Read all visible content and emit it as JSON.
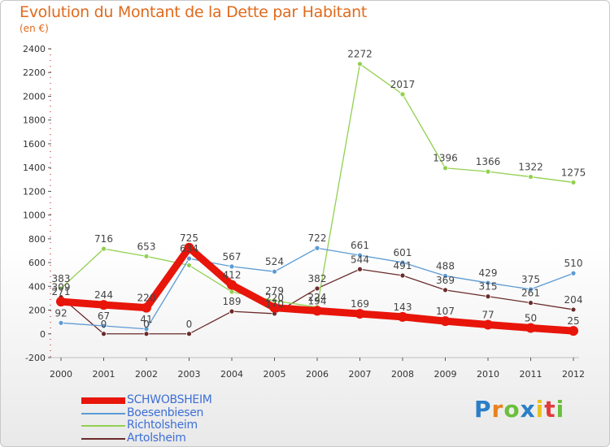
{
  "title": "Evolution du Montant de la Dette par Habitant",
  "subtitle": "(en €)",
  "logo": {
    "text": "Proxiti",
    "letter_colors": [
      "#2a7fc7",
      "#e8821e",
      "#6abf3c",
      "#2a7fc7",
      "#e8c21e",
      "#e23c3c",
      "#6abf3c"
    ]
  },
  "chart_data": {
    "type": "line",
    "x": [
      "2000",
      "2001",
      "2002",
      "2003",
      "2004",
      "2005",
      "2006",
      "2007",
      "2008",
      "2009",
      "2010",
      "2011",
      "2012"
    ],
    "ylim": [
      -200,
      2400
    ],
    "yticks": [
      "-200",
      "0",
      "200",
      "400",
      "600",
      "800",
      "1000",
      "1200",
      "1400",
      "1600",
      "1800",
      "2000",
      "2200",
      "2400"
    ],
    "grid": false,
    "legend_position": "bottom-left",
    "series": [
      {
        "name": "SCHWOBSHEIM",
        "color": "#e8150a",
        "values": [
          271,
          244,
          220,
          725,
          412,
          220,
          194,
          169,
          143,
          107,
          77,
          50,
          25
        ],
        "labels": [
          "271",
          "244",
          "220",
          "725",
          "412",
          "220",
          "194",
          "169",
          "143",
          "107",
          "77",
          "50",
          "25"
        ]
      },
      {
        "name": "Boesenbiesen",
        "color": "#5b9bd5",
        "values": [
          92,
          67,
          41,
          634,
          567,
          524,
          722,
          661,
          601,
          488,
          429,
          375,
          510
        ],
        "labels": [
          "92",
          "67",
          "41",
          "634",
          "567",
          "524",
          "722",
          "661",
          "601",
          "488",
          "429",
          "375",
          "510"
        ]
      },
      {
        "name": "Richtolsheim",
        "color": "#92d050",
        "values": [
          383,
          716,
          653,
          577,
          354,
          279,
          224,
          2272,
          2017,
          1396,
          1366,
          1322,
          1275
        ],
        "labels": [
          "383",
          "716",
          "653",
          "",
          "",
          "279",
          "224",
          "2272",
          "2017",
          "1396",
          "1366",
          "1322",
          "1275"
        ]
      },
      {
        "name": "Artolsheim",
        "color": "#6b2b2b",
        "values": [
          309,
          0,
          0,
          0,
          189,
          170,
          382,
          544,
          491,
          369,
          315,
          261,
          204
        ],
        "labels": [
          "309",
          "0",
          "0",
          "0",
          "189",
          "170",
          "382",
          "544",
          "491",
          "369",
          "315",
          "261",
          "204"
        ]
      }
    ]
  }
}
